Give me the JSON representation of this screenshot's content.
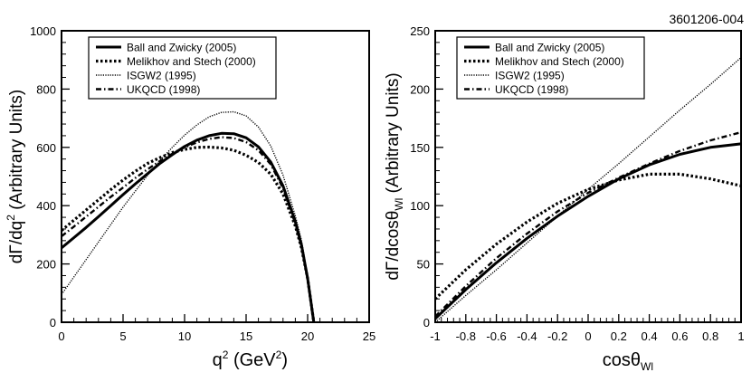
{
  "figure_label": "3601206-004",
  "chart_data": [
    {
      "type": "line",
      "xlabel": "q",
      "xlabel_sup": "2",
      "xlabel_unit": "(GeV",
      "xlabel_unit_sup": "2",
      "xlabel_close": ")",
      "ylabel": "dΓ/dq",
      "ylabel_sup": "2",
      "ylabel_rest": " (Arbitrary Units)",
      "xlim": [
        0,
        25
      ],
      "ylim": [
        0,
        1000
      ],
      "xticks": [
        0,
        5,
        10,
        15,
        20,
        25
      ],
      "xtick_labels": [
        "0",
        "5",
        "10",
        "15",
        "20",
        "25"
      ],
      "yticks": [
        0,
        200,
        400,
        600,
        800,
        1000
      ],
      "ytick_labels": [
        "0",
        "200",
        "400",
        "600",
        "800",
        "1000"
      ],
      "grid": false,
      "legend_position": "top-left",
      "series": [
        {
          "name": "Ball and Zwicky (2005)",
          "style": "solid",
          "x": [
            0,
            1,
            2,
            3,
            4,
            5,
            6,
            7,
            8,
            9,
            10,
            11,
            12,
            13,
            14,
            15,
            16,
            17,
            18,
            19,
            19.5,
            20,
            20.3,
            20.5
          ],
          "y": [
            255,
            290,
            325,
            362,
            400,
            438,
            475,
            510,
            545,
            575,
            603,
            625,
            640,
            648,
            647,
            633,
            602,
            550,
            468,
            345,
            265,
            150,
            60,
            0
          ]
        },
        {
          "name": "Melikhov and Stech (2000)",
          "style": "dotted",
          "x": [
            0,
            1,
            2,
            3,
            4,
            5,
            6,
            7,
            8,
            9,
            10,
            11,
            12,
            13,
            14,
            15,
            16,
            17,
            18,
            19,
            19.5,
            20,
            20.3,
            20.5
          ],
          "y": [
            315,
            350,
            385,
            420,
            455,
            488,
            518,
            545,
            565,
            582,
            593,
            600,
            601,
            598,
            590,
            573,
            548,
            508,
            440,
            330,
            255,
            150,
            60,
            0
          ]
        },
        {
          "name": "ISGW2 (1995)",
          "style": "fine-dotted",
          "x": [
            0,
            1,
            2,
            3,
            4,
            5,
            6,
            7,
            8,
            9,
            10,
            11,
            12,
            13,
            14,
            15,
            16,
            17,
            18,
            19,
            19.5,
            20,
            20.3,
            20.5
          ],
          "y": [
            95,
            155,
            215,
            275,
            335,
            395,
            450,
            505,
            555,
            600,
            642,
            677,
            705,
            720,
            722,
            708,
            670,
            605,
            505,
            365,
            280,
            160,
            65,
            0
          ]
        },
        {
          "name": "UKQCD (1998)",
          "style": "dash-dot",
          "x": [
            0,
            1,
            2,
            3,
            4,
            5,
            6,
            7,
            8,
            9,
            10,
            11,
            12,
            13,
            14,
            15,
            16,
            17,
            18,
            19,
            19.5,
            20,
            20.3,
            20.5
          ],
          "y": [
            295,
            328,
            362,
            396,
            430,
            462,
            495,
            525,
            553,
            578,
            600,
            617,
            629,
            635,
            632,
            618,
            590,
            542,
            460,
            338,
            260,
            150,
            60,
            0
          ]
        }
      ]
    },
    {
      "type": "line",
      "xlabel": "cosθ",
      "xlabel_sub": "Wl",
      "ylabel": "dΓ/dcosθ",
      "ylabel_sub": "Wl",
      "ylabel_rest": " (Arbitrary Units)",
      "xlim": [
        -1,
        1
      ],
      "ylim": [
        0,
        250
      ],
      "xticks": [
        -1,
        -0.8,
        -0.6,
        -0.4,
        -0.2,
        0,
        0.2,
        0.4,
        0.6,
        0.8,
        1
      ],
      "xtick_labels": [
        "-1",
        "-0.8",
        "-0.6",
        "-0.4",
        "-0.2",
        "0",
        "0.2",
        "0.4",
        "0.6",
        "0.8",
        "1"
      ],
      "yticks": [
        0,
        50,
        100,
        150,
        200,
        250
      ],
      "ytick_labels": [
        "0",
        "50",
        "100",
        "150",
        "200",
        "250"
      ],
      "grid": false,
      "legend_position": "top-left",
      "series": [
        {
          "name": "Ball and Zwicky (2005)",
          "style": "solid",
          "x": [
            -1,
            -0.8,
            -0.6,
            -0.4,
            -0.2,
            0,
            0.2,
            0.4,
            0.6,
            0.8,
            1
          ],
          "y": [
            3,
            28,
            51,
            72,
            91,
            108,
            123,
            135,
            144,
            150,
            153
          ]
        },
        {
          "name": "Melikhov and Stech (2000)",
          "style": "dotted",
          "x": [
            -1,
            -0.8,
            -0.6,
            -0.4,
            -0.2,
            0,
            0.2,
            0.4,
            0.6,
            0.8,
            1
          ],
          "y": [
            20,
            45,
            67,
            86,
            102,
            114,
            122,
            127,
            127,
            123,
            117
          ]
        },
        {
          "name": "ISGW2 (1995)",
          "style": "fine-dotted",
          "x": [
            -1,
            -0.8,
            -0.6,
            -0.4,
            -0.2,
            0,
            0.2,
            0.4,
            0.6,
            0.8,
            1
          ],
          "y": [
            0,
            23,
            45,
            68,
            91,
            114,
            136,
            159,
            182,
            204,
            227
          ]
        },
        {
          "name": "UKQCD (1998)",
          "style": "dash-dot",
          "x": [
            -1,
            -0.8,
            -0.6,
            -0.4,
            -0.2,
            0,
            0.2,
            0.4,
            0.6,
            0.8,
            1
          ],
          "y": [
            5,
            31,
            55,
            76,
            95,
            111,
            124,
            136,
            147,
            156,
            163
          ]
        }
      ]
    }
  ]
}
